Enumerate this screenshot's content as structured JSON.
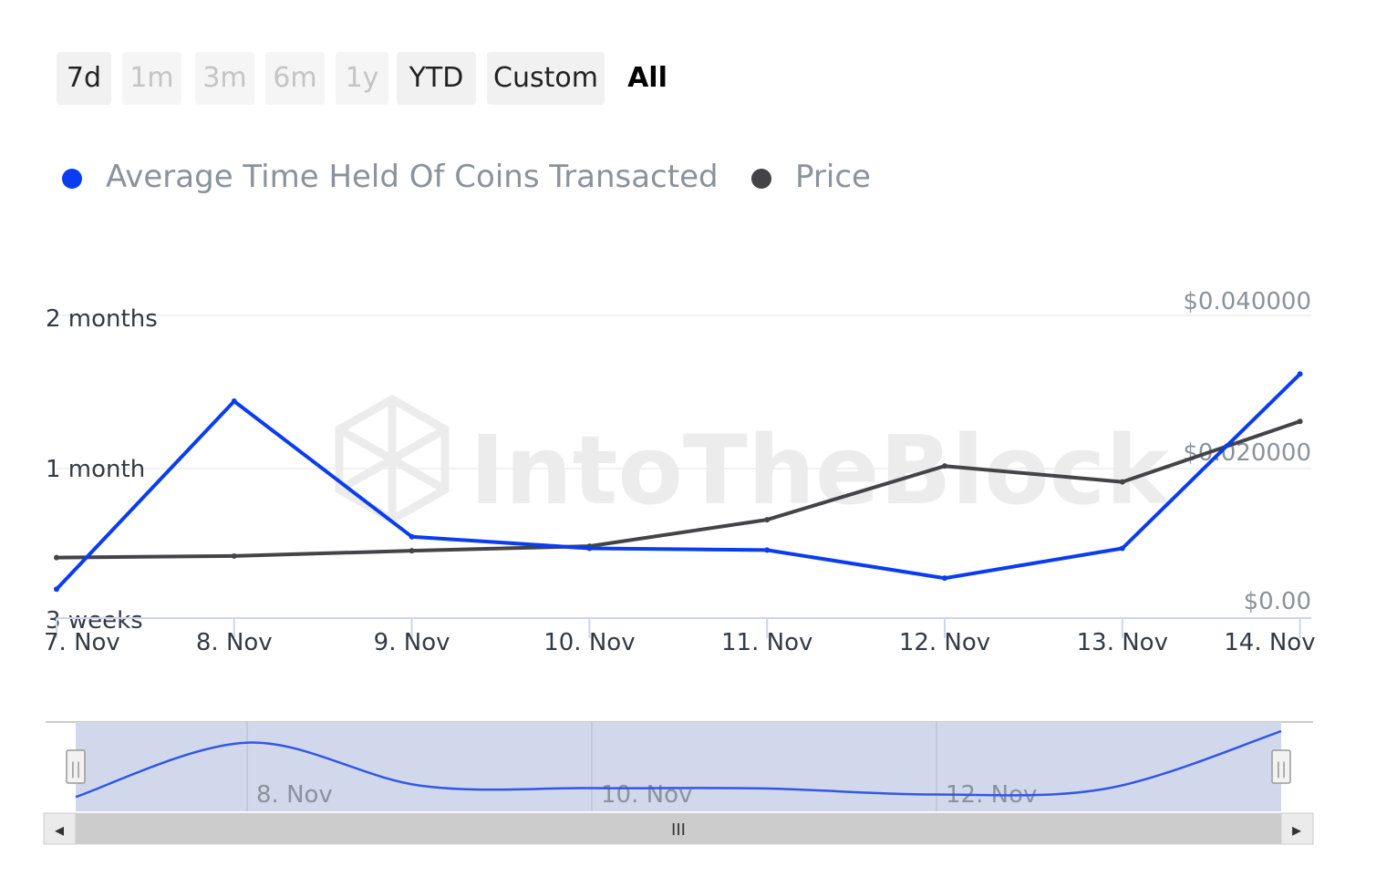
{
  "range_selector": {
    "buttons": [
      {
        "label": "7d",
        "state": "enabled"
      },
      {
        "label": "1m",
        "state": "disabled"
      },
      {
        "label": "3m",
        "state": "disabled"
      },
      {
        "label": "6m",
        "state": "disabled"
      },
      {
        "label": "1y",
        "state": "disabled"
      },
      {
        "label": "YTD",
        "state": "enabled"
      },
      {
        "label": "Custom",
        "state": "enabled"
      },
      {
        "label": "All",
        "state": "active"
      }
    ]
  },
  "legend": {
    "items": [
      {
        "label": "Average Time Held Of Coins Transacted",
        "color": "#0a3cf0"
      },
      {
        "label": "Price",
        "color": "#434348"
      }
    ]
  },
  "watermark": "IntoTheBlock",
  "navigator": {
    "tick_labels": [
      "8. Nov",
      "10. Nov",
      "12. Nov"
    ],
    "scroll_grip": "III",
    "left_arrow": "◂",
    "right_arrow": "▸",
    "handle_grip": "||"
  },
  "chart_data": {
    "type": "line",
    "x": [
      "7. Nov",
      "8. Nov",
      "9. Nov",
      "10. Nov",
      "11. Nov",
      "12. Nov",
      "13. Nov",
      "14. Nov"
    ],
    "left_axis": {
      "tick_labels": [
        "3 weeks",
        "1 month",
        "2 months"
      ]
    },
    "right_axis": {
      "tick_labels": [
        "$0.00",
        "$0.020000",
        "$0.040000"
      ],
      "ylim": [
        0,
        0.04
      ]
    },
    "grid": true,
    "legend_position": "top-left",
    "series": [
      {
        "name": "Average Time Held Of Coins Transacted",
        "color": "#0a3cf0",
        "axis": "left",
        "values_days": [
          22.5,
          41,
          25.5,
          24.8,
          24.7,
          23.1,
          24.8,
          46.5
        ]
      },
      {
        "name": "Price",
        "color": "#434348",
        "axis": "right",
        "values": [
          0.008,
          0.0082,
          0.0089,
          0.0095,
          0.013,
          0.0201,
          0.018,
          0.026
        ]
      }
    ]
  }
}
